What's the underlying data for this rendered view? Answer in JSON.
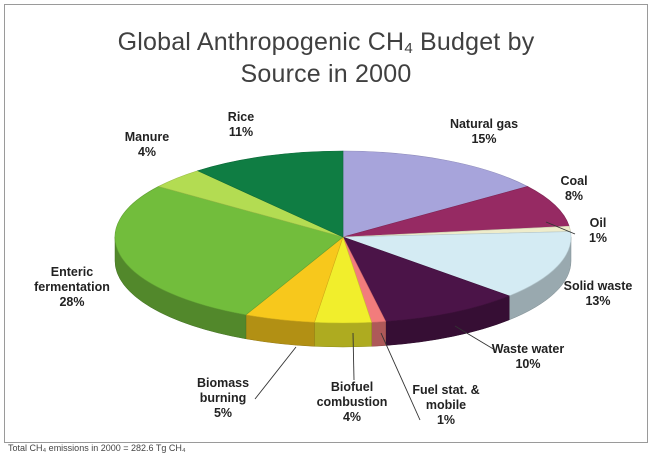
{
  "chart_data": {
    "type": "pie",
    "title_prefix": "Global Anthropogenic CH",
    "title_subscript": "4",
    "title_suffix": " Budget by",
    "title_line2": "Source in 2000",
    "slices": [
      {
        "name": "Natural gas",
        "percent_label": "15%",
        "value": 15,
        "color": "#a7a4db"
      },
      {
        "name": "Coal",
        "percent_label": "8%",
        "value": 8,
        "color": "#962a63"
      },
      {
        "name": "Oil",
        "percent_label": "1%",
        "value": 1,
        "color": "#eeeccb"
      },
      {
        "name": "Solid waste",
        "percent_label": "13%",
        "value": 13,
        "color": "#d4ebf3"
      },
      {
        "name": "Waste water",
        "percent_label": "10%",
        "value": 10,
        "color": "#4b1448"
      },
      {
        "name": "Fuel stat. & mobile",
        "name_line1": "Fuel stat. &",
        "name_line2": "mobile",
        "percent_label": "1%",
        "value": 1,
        "color": "#f27c7c"
      },
      {
        "name": "Biofuel combustion",
        "name_line1": "Biofuel",
        "name_line2": "combustion",
        "percent_label": "4%",
        "value": 4,
        "color": "#f1ee2c"
      },
      {
        "name": "Biomass burning",
        "name_line1": "Biomass",
        "name_line2": "burning",
        "percent_label": "5%",
        "value": 5,
        "color": "#f7c81c"
      },
      {
        "name": "Enteric fermentation",
        "name_line1": "Enteric",
        "name_line2": "fermentation",
        "percent_label": "28%",
        "value": 28,
        "color": "#72bd3c"
      },
      {
        "name": "Manure",
        "percent_label": "4%",
        "value": 4,
        "color": "#b3dc52"
      },
      {
        "name": "Rice",
        "percent_label": "11%",
        "value": 11,
        "color": "#0f7d43"
      }
    ],
    "legend": "none",
    "style": "3d-pie"
  },
  "footnote": "Total CH₄ emissions in 2000 = 282.6 Tg CH₄"
}
